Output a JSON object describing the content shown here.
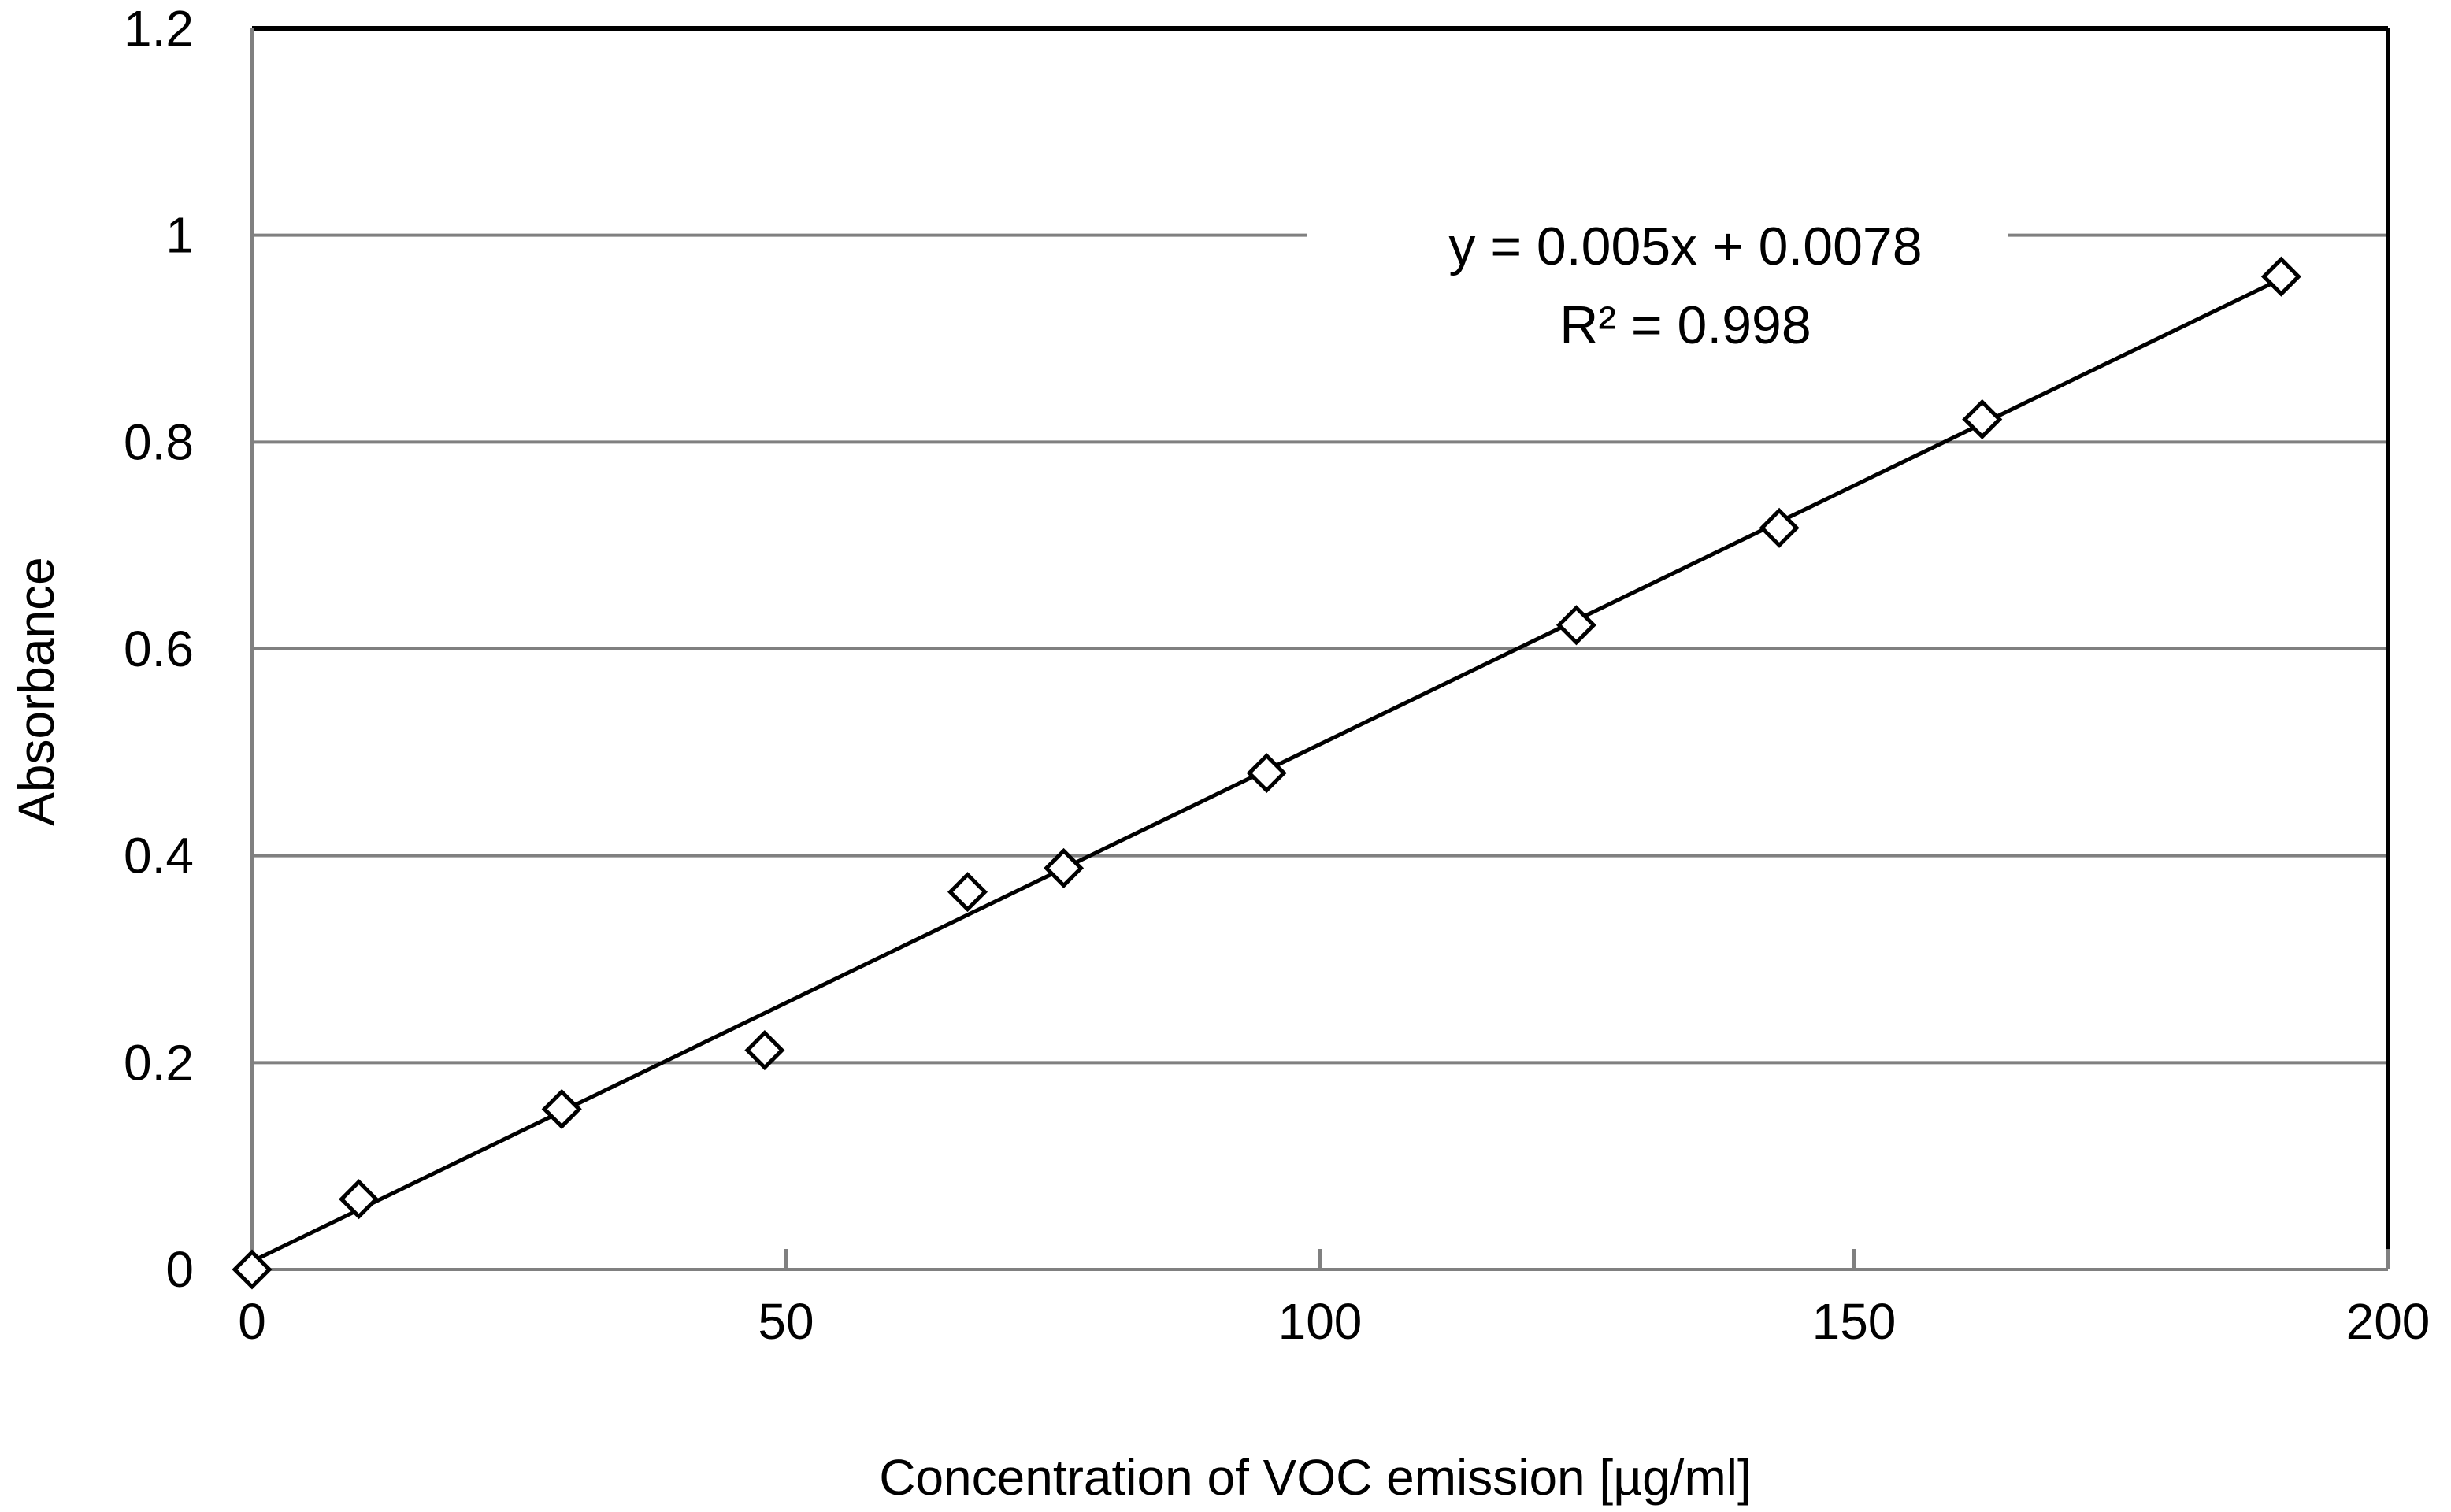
{
  "chart_data": {
    "type": "scatter",
    "title": "",
    "xlabel": "Concentration of VOC emission [µg/ml]",
    "ylabel": "Absorbance",
    "xlim": [
      0,
      200
    ],
    "ylim": [
      0,
      1.2
    ],
    "x_ticks": [
      0,
      50,
      100,
      150,
      200
    ],
    "y_ticks": [
      0,
      0.2,
      0.4,
      0.6,
      0.8,
      1,
      1.2
    ],
    "x_tick_labels": [
      "0",
      "50",
      "100",
      "150",
      "200"
    ],
    "y_tick_labels": [
      "0",
      "0.2",
      "0.4",
      "0.6",
      "0.8",
      "1",
      "1.2"
    ],
    "grid": "horizontal",
    "series": [
      {
        "name": "Absorbance",
        "marker": "open-diamond",
        "x": [
          0,
          10,
          29,
          48,
          67,
          76,
          95,
          124,
          143,
          162,
          190
        ],
        "y": [
          0.0,
          0.068,
          0.155,
          0.212,
          0.365,
          0.388,
          0.48,
          0.623,
          0.717,
          0.822,
          0.96
        ]
      }
    ],
    "trendline": {
      "type": "linear",
      "slope": 0.005,
      "intercept": 0.0078,
      "x_range": [
        0,
        190
      ],
      "equation_label": "y = 0.005x  + 0.0078",
      "r2_label": "R² = 0.998"
    },
    "colors": {
      "frame": "#000000",
      "grid": "#808080",
      "marker": "#000000",
      "trendline": "#000000"
    }
  }
}
